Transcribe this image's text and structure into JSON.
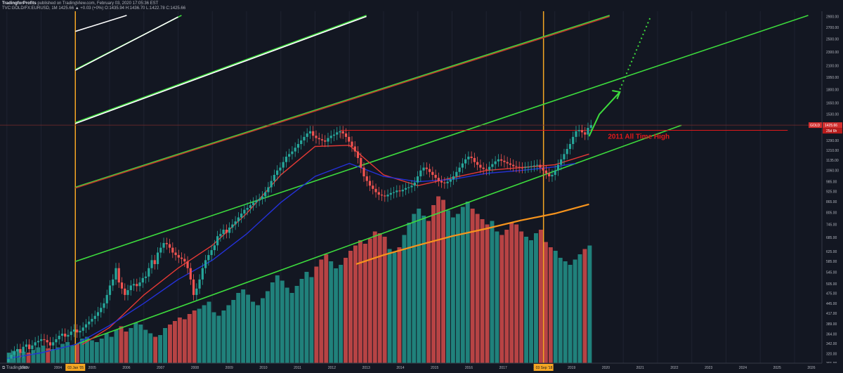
{
  "header": {
    "publisher": "TradingforProfits",
    "published_text": " published on TradingView.com, February 03, 2020 17:05:36 EST",
    "symbol_line": "TVC:GOLD/FX:EURUSD, 1M 1425.66 ▲ +0.03 (+0%) O:1435.94 H:1436.70 L:1422.78 C:1425.66"
  },
  "footer": {
    "brand": "TradingView"
  },
  "colors": {
    "background": "#131722",
    "bull": "#26a69a",
    "bear": "#ef5350",
    "channel_green": "#3ddc3d",
    "channel_white": "#ffffff",
    "channel_red": "#c0392b",
    "vertical_marker": "#f5a623",
    "ma_blue": "#2431d8",
    "ma_red": "#e53935",
    "ma_orange": "#f7941d",
    "annotation_red": "#e0191b"
  },
  "chart_data": {
    "type": "candlestick",
    "title": "TVC:GOLD/FX:EURUSD",
    "timeframe": "1M",
    "price_scale": "log",
    "xlim": [
      2002.8,
      2026.8
    ],
    "ylim": [
      301,
      3000
    ],
    "x_ticks": [
      "2003",
      "2004",
      "2005",
      "2006",
      "2007",
      "2008",
      "2009",
      "2010",
      "2011",
      "2012",
      "2013",
      "2014",
      "2015",
      "2016",
      "2017",
      "2018",
      "2019",
      "2020",
      "2021",
      "2022",
      "2023",
      "2024",
      "2025",
      "2026"
    ],
    "y_ticks": [
      "2900.00",
      "2700.00",
      "2500.00",
      "2300.00",
      "2100.00",
      "1950.00",
      "1800.00",
      "1650.00",
      "1530.00",
      "1420.00",
      "1290.00",
      "1210.00",
      "1135.00",
      "1060.00",
      "985.00",
      "925.00",
      "865.00",
      "805.00",
      "745.00",
      "685.00",
      "625.00",
      "585.00",
      "545.00",
      "505.00",
      "475.00",
      "445.00",
      "417.00",
      "389.00",
      "364.00",
      "342.00",
      "320.00",
      "301.00"
    ],
    "last_price_label": "1425.66",
    "countdown_label": "25d 6h",
    "symbol_tag": "GOLD",
    "annotation": "2011 All Time High",
    "ath_level": 1378,
    "vertical_markers": [
      {
        "x": 2005.0,
        "label": "03 Jan '05"
      },
      {
        "x": 2018.67,
        "label": "03 Sep '18"
      }
    ],
    "candles_close": [
      310,
      318,
      325,
      330,
      322,
      335,
      340,
      330,
      338,
      345,
      348,
      352,
      350,
      345,
      338,
      345,
      352,
      360,
      365,
      358,
      362,
      370,
      375,
      368,
      372,
      380,
      388,
      395,
      402,
      410,
      420,
      432,
      445,
      470,
      500,
      520,
      560,
      510,
      490,
      470,
      485,
      500,
      505,
      498,
      510,
      525,
      530,
      560,
      590,
      575,
      620,
      640,
      660,
      655,
      640,
      620,
      610,
      600,
      595,
      585,
      560,
      520,
      470,
      490,
      520,
      560,
      590,
      610,
      630,
      650,
      690,
      700,
      720,
      705,
      730,
      745,
      760,
      780,
      800,
      820,
      830,
      845,
      860,
      870,
      880,
      895,
      920,
      950,
      990,
      1030,
      1060,
      1080,
      1120,
      1160,
      1180,
      1200,
      1230,
      1260,
      1290,
      1320,
      1350,
      1370,
      1330,
      1310,
      1300,
      1290,
      1280,
      1310,
      1330,
      1340,
      1360,
      1370,
      1350,
      1320,
      1280,
      1240,
      1200,
      1150,
      1080,
      1020,
      990,
      960,
      940,
      920,
      905,
      900,
      895,
      905,
      915,
      920,
      930,
      925,
      935,
      945,
      950,
      960,
      980,
      1020,
      1060,
      1080,
      1070,
      1050,
      1030,
      1010,
      990,
      980,
      975,
      985,
      1000,
      1020,
      1050,
      1080,
      1110,
      1140,
      1160,
      1150,
      1120,
      1100,
      1080,
      1070,
      1065,
      1085,
      1105,
      1125,
      1140,
      1130,
      1120,
      1110,
      1100,
      1090,
      1085,
      1080,
      1078,
      1082,
      1085,
      1090,
      1095,
      1100,
      1080,
      1060,
      1040,
      1020,
      1030,
      1060,
      1100,
      1140,
      1180,
      1220,
      1260,
      1320,
      1370,
      1380,
      1360,
      1340,
      1400,
      1425.66
    ],
    "moving_averages": [
      {
        "name": "MA red",
        "color": "#e53935",
        "points": [
          [
            2005.2,
            340
          ],
          [
            2006,
            380
          ],
          [
            2007,
            470
          ],
          [
            2008,
            560
          ],
          [
            2009,
            650
          ],
          [
            2010,
            800
          ],
          [
            2011,
            1030
          ],
          [
            2012,
            1240
          ],
          [
            2013,
            1250
          ],
          [
            2014,
            1030
          ],
          [
            2015,
            960
          ],
          [
            2016,
            1010
          ],
          [
            2017,
            1060
          ],
          [
            2018,
            1080
          ],
          [
            2019,
            1100
          ],
          [
            2020,
            1180
          ]
        ]
      },
      {
        "name": "MA blue",
        "color": "#2431d8",
        "points": [
          [
            2003,
            310
          ],
          [
            2004,
            322
          ],
          [
            2005,
            340
          ],
          [
            2006,
            385
          ],
          [
            2007,
            445
          ],
          [
            2008,
            520
          ],
          [
            2009,
            590
          ],
          [
            2010,
            700
          ],
          [
            2011,
            860
          ],
          [
            2012,
            1020
          ],
          [
            2013,
            1110
          ],
          [
            2014,
            1020
          ],
          [
            2015,
            985
          ],
          [
            2016,
            1000
          ],
          [
            2017,
            1040
          ],
          [
            2018,
            1060
          ],
          [
            2019,
            1085
          ],
          [
            2019.6,
            1110
          ]
        ]
      },
      {
        "name": "MA orange",
        "color": "#f7941d",
        "points": [
          [
            2013.2,
            575
          ],
          [
            2014,
            610
          ],
          [
            2015,
            650
          ],
          [
            2016,
            690
          ],
          [
            2017,
            725
          ],
          [
            2018,
            765
          ],
          [
            2019,
            800
          ],
          [
            2020,
            850
          ]
        ]
      }
    ],
    "trendlines": [
      {
        "color": "#ffffff",
        "from": [
          2005.0,
          2630
        ],
        "to": [
          2006.5,
          2920
        ]
      },
      {
        "color": "#3ddc3d",
        "from": [
          2005.0,
          2050
        ],
        "to": [
          2008.1,
          2920
        ]
      },
      {
        "color": "#ffffff",
        "from": [
          2005.0,
          2040
        ],
        "to": [
          2008.0,
          2890
        ]
      },
      {
        "color": "#3ddc3d",
        "from": [
          2005.0,
          1450
        ],
        "to": [
          2013.5,
          2920
        ]
      },
      {
        "color": "#ffffff",
        "from": [
          2005.0,
          1440
        ],
        "to": [
          2013.5,
          2900
        ]
      },
      {
        "color": "#3ddc3d",
        "from": [
          2005.0,
          950
        ],
        "to": [
          2020.6,
          2920
        ]
      },
      {
        "color": "#c0392b",
        "from": [
          2005.0,
          945
        ],
        "to": [
          2020.6,
          2900
        ]
      },
      {
        "color": "#3ddc3d",
        "from": [
          2005.0,
          585
        ],
        "to": [
          2026.4,
          2920
        ]
      },
      {
        "color": "#3ddc3d",
        "from": [
          2005.0,
          340
        ],
        "to": [
          2022.7,
          1425
        ]
      }
    ],
    "projection": [
      [
        2020.0,
        1325
      ],
      [
        2020.3,
        1530
      ],
      [
        2020.9,
        1770
      ]
    ],
    "projection_dotted": [
      [
        2020.9,
        1800
      ],
      [
        2021.8,
        2900
      ]
    ],
    "volume_tops": [
      12,
      14,
      16,
      13,
      12,
      15,
      18,
      20,
      17,
      16,
      18,
      22,
      24,
      20,
      22,
      28,
      30,
      26,
      24,
      28,
      34,
      30,
      38,
      42,
      36,
      40,
      46,
      44,
      38,
      34,
      30,
      32,
      40,
      44,
      48,
      52,
      50,
      56,
      60,
      62,
      66,
      70,
      58,
      54,
      60,
      66,
      72,
      80,
      84,
      78,
      70,
      66,
      74,
      82,
      92,
      100,
      94,
      86,
      80,
      88,
      96,
      104,
      98,
      110,
      118,
      124,
      116,
      108,
      112,
      120,
      128,
      134,
      140,
      136,
      142,
      150,
      148,
      144,
      130,
      126,
      132,
      146,
      160,
      170,
      176,
      168,
      162,
      180,
      190,
      186,
      174,
      166,
      170,
      178,
      184,
      176,
      170,
      164,
      158,
      162,
      150,
      146,
      152,
      160,
      158,
      150,
      144,
      140,
      148,
      152,
      138,
      132,
      128,
      120,
      116,
      112,
      118,
      124,
      130,
      134
    ]
  }
}
